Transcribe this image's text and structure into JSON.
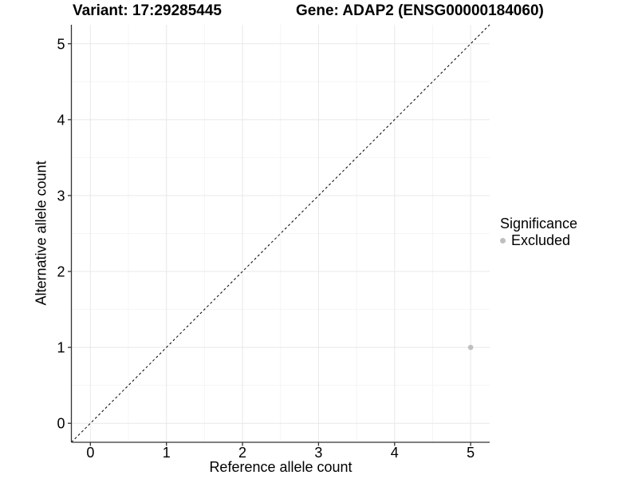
{
  "chart_data": {
    "type": "scatter",
    "titles": {
      "variant": "Variant: 17:29285445",
      "gene": "Gene: ADAP2 (ENSG00000184060)"
    },
    "xlabel": "Reference allele count",
    "ylabel": "Alternative allele count",
    "xlim": [
      -0.25,
      5.25
    ],
    "ylim": [
      -0.25,
      5.25
    ],
    "x_ticks": [
      0,
      1,
      2,
      3,
      4,
      5
    ],
    "y_ticks": [
      0,
      1,
      2,
      3,
      4,
      5
    ],
    "grid": {
      "major": true,
      "minor": true,
      "minor_at_half_steps": true
    },
    "identity_line": {
      "shown": true,
      "style": "dashed",
      "from": [
        -0.25,
        -0.25
      ],
      "to": [
        5.25,
        5.25
      ],
      "color": "#000000"
    },
    "series": [
      {
        "name": "Excluded",
        "color": "#bfbfbf",
        "points": [
          {
            "x": 5,
            "y": 1
          }
        ]
      }
    ],
    "legend": {
      "title": "Significance",
      "position": "right",
      "items": [
        {
          "label": "Excluded",
          "color": "#bfbfbf"
        }
      ]
    },
    "colors": {
      "background": "#ffffff",
      "grid_major": "#e8e8e8",
      "grid_minor": "#f5f5f5",
      "axis_line": "#333333",
      "tick_text": "#000000",
      "dashed_line": "#000000"
    }
  }
}
